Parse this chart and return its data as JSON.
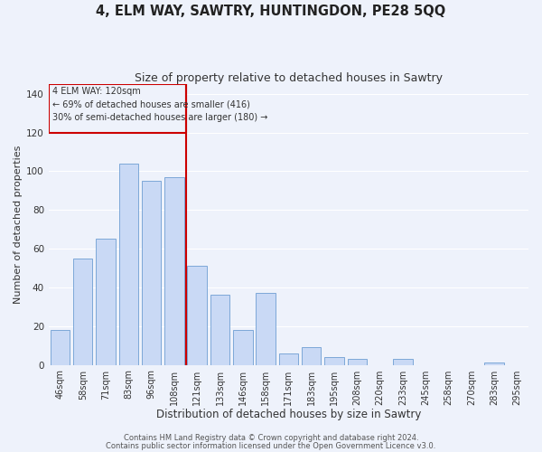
{
  "title": "4, ELM WAY, SAWTRY, HUNTINGDON, PE28 5QQ",
  "subtitle": "Size of property relative to detached houses in Sawtry",
  "xlabel": "Distribution of detached houses by size in Sawtry",
  "ylabel": "Number of detached properties",
  "bar_labels": [
    "46sqm",
    "58sqm",
    "71sqm",
    "83sqm",
    "96sqm",
    "108sqm",
    "121sqm",
    "133sqm",
    "146sqm",
    "158sqm",
    "171sqm",
    "183sqm",
    "195sqm",
    "208sqm",
    "220sqm",
    "233sqm",
    "245sqm",
    "258sqm",
    "270sqm",
    "283sqm",
    "295sqm"
  ],
  "bar_values": [
    18,
    55,
    65,
    104,
    95,
    97,
    51,
    36,
    18,
    37,
    6,
    9,
    4,
    3,
    0,
    3,
    0,
    0,
    0,
    1,
    0
  ],
  "bar_color": "#c9d9f5",
  "bar_edge_color": "#7da8d8",
  "highlight_index": 6,
  "vline_color": "#cc0000",
  "annotation_text_line1": "4 ELM WAY: 120sqm",
  "annotation_text_line2": "← 69% of detached houses are smaller (416)",
  "annotation_text_line3": "30% of semi-detached houses are larger (180) →",
  "ylim": [
    0,
    145
  ],
  "background_color": "#eef2fb",
  "grid_color": "#ffffff",
  "footer_line1": "Contains HM Land Registry data © Crown copyright and database right 2024.",
  "footer_line2": "Contains public sector information licensed under the Open Government Licence v3.0.",
  "title_fontsize": 10.5,
  "subtitle_fontsize": 9,
  "xlabel_fontsize": 8.5,
  "ylabel_fontsize": 8,
  "tick_fontsize": 7,
  "footer_fontsize": 6,
  "yticks": [
    0,
    20,
    40,
    60,
    80,
    100,
    120,
    140
  ]
}
